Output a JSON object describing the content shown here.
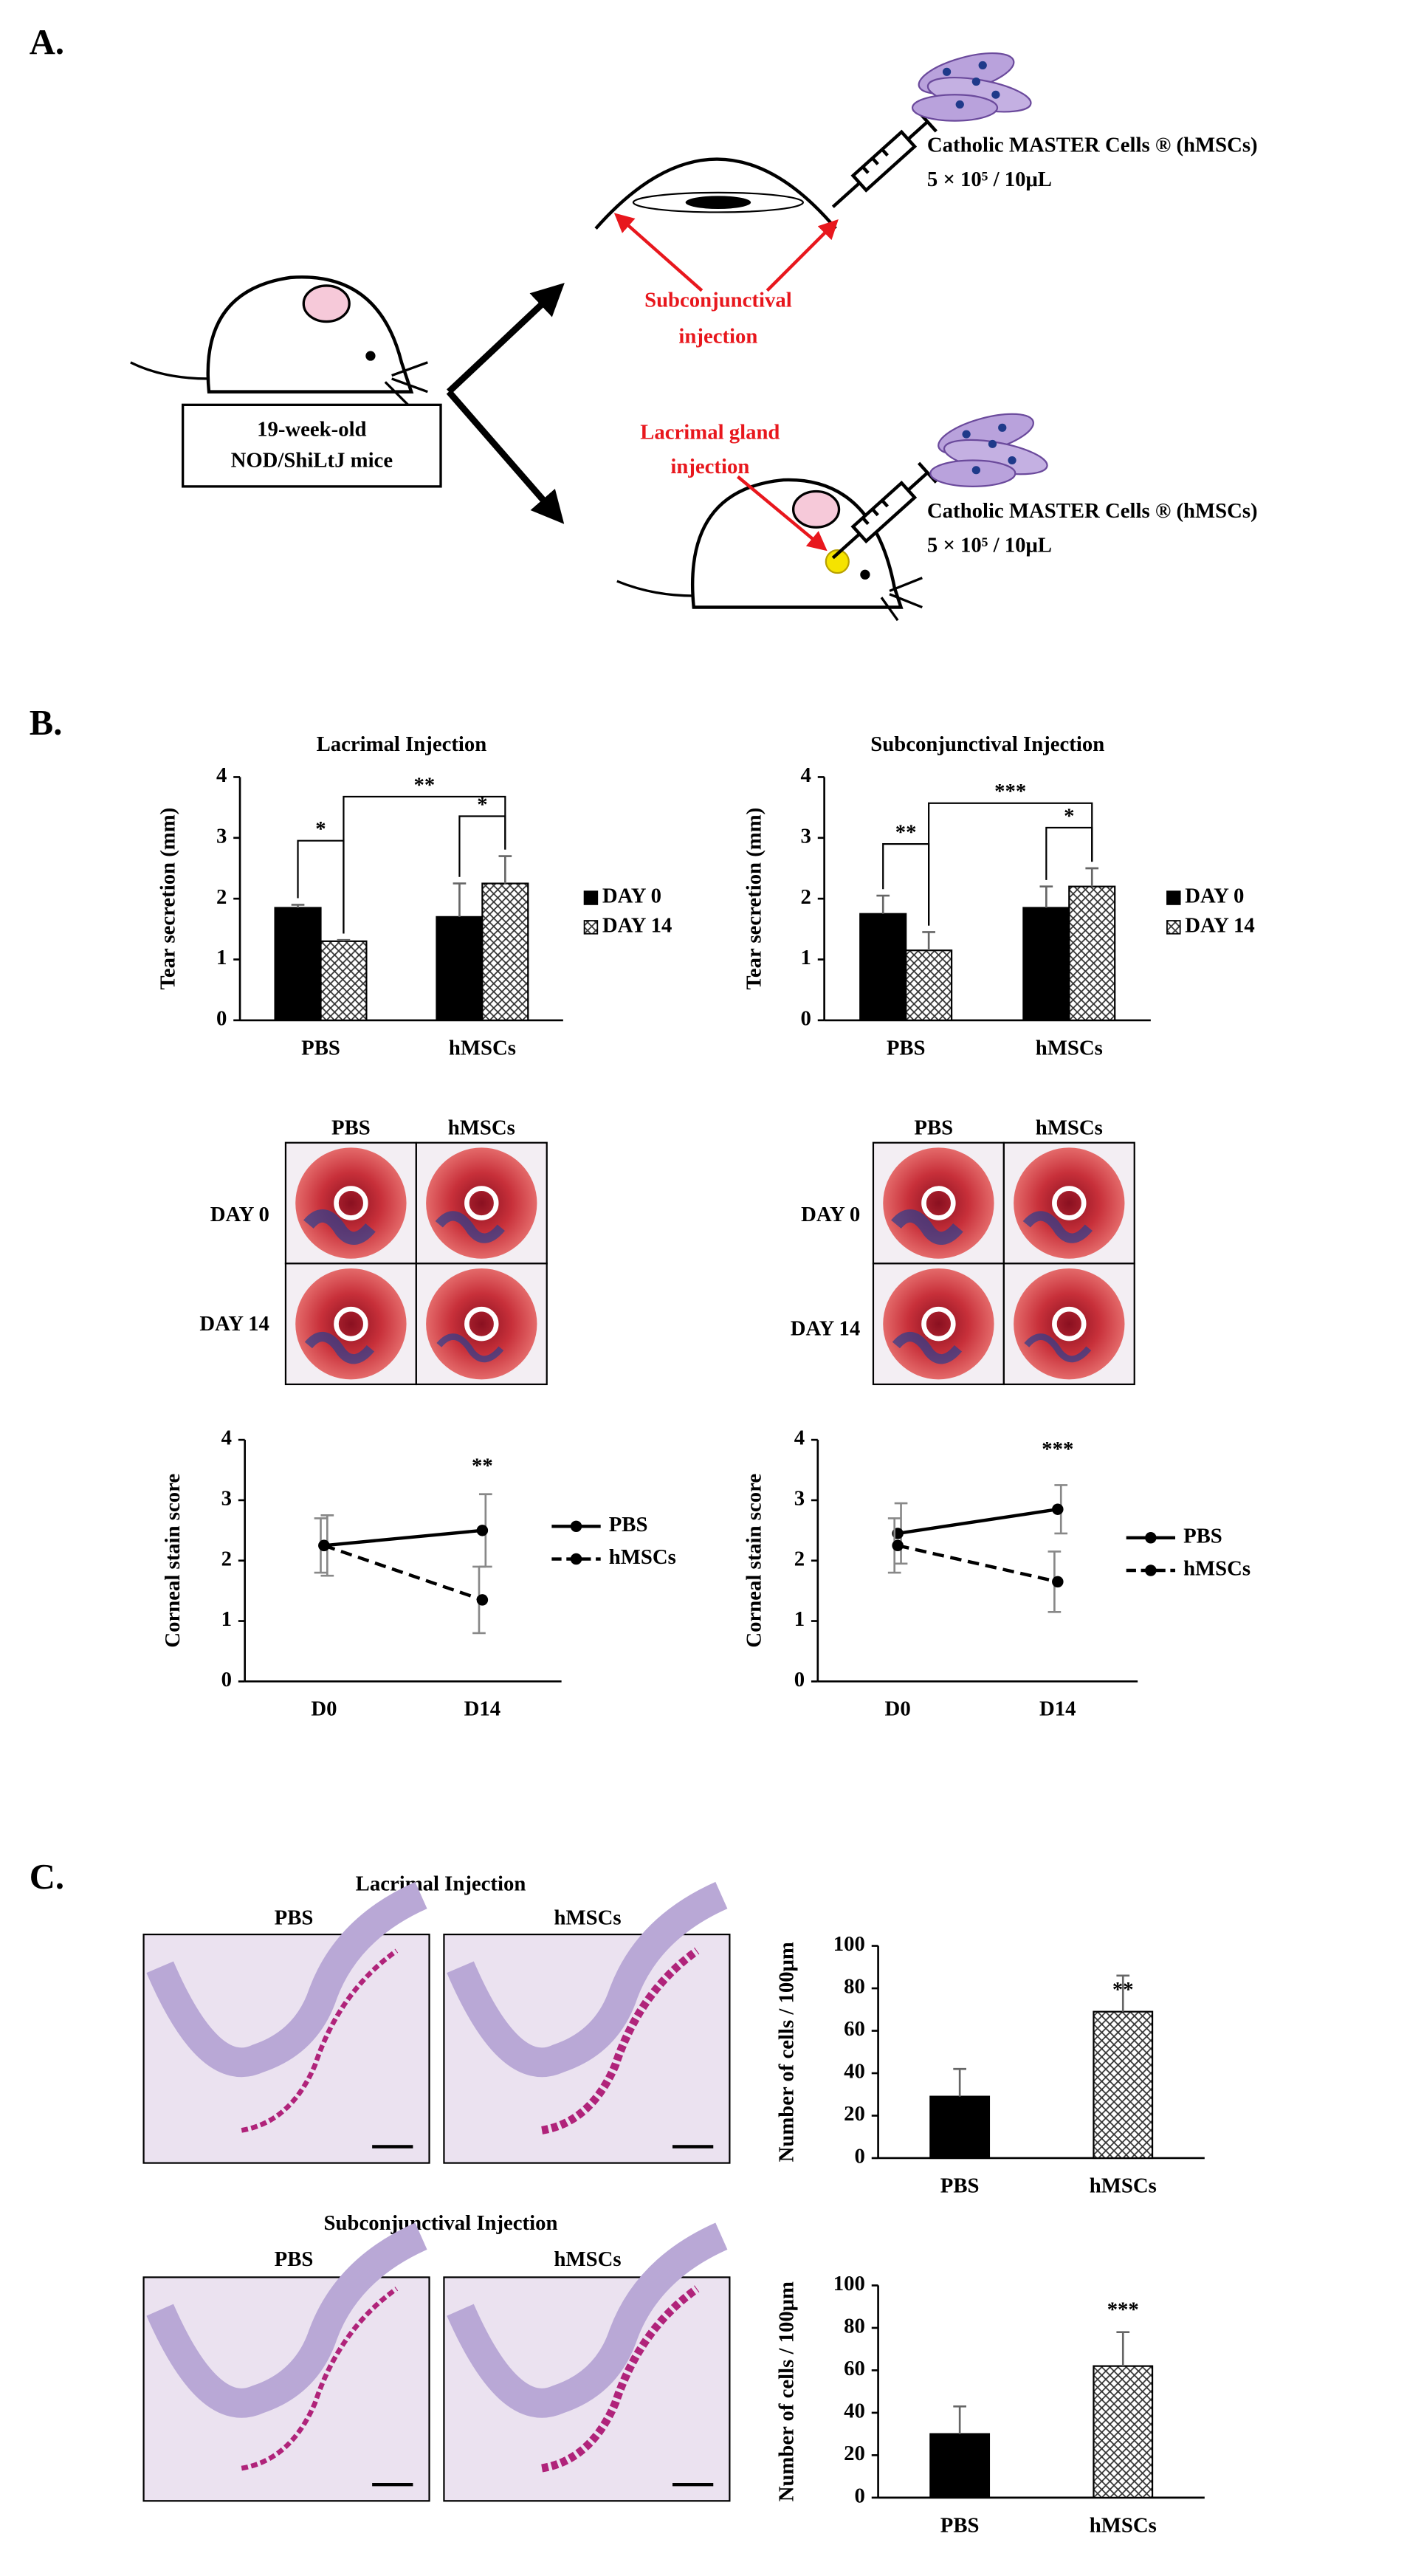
{
  "figure": {
    "panel_a": {
      "label": "A.",
      "mouse_label": [
        "19-week-old",
        "NOD/ShiLtJ mice"
      ],
      "cells_upper": [
        "Catholic  MASTER Cells ® (hMSCs)",
        "5 × 10⁵ / 10μL"
      ],
      "subconjunctival": [
        "Subconjunctival",
        "injection"
      ],
      "lacrimal": [
        "Lacrimal gland",
        "injection"
      ],
      "cells_lower": [
        "Catholic  MASTER Cells ® (hMSCs)",
        "5 × 10⁵ / 10μL"
      ]
    },
    "panel_b": {
      "label": "B.",
      "stain_left": {
        "columns": [
          "PBS",
          "hMSCs"
        ],
        "rows": [
          "DAY 0",
          "DAY 14"
        ]
      },
      "stain_right": {
        "columns": [
          "PBS",
          "hMSCs"
        ],
        "rows": [
          "DAY 0",
          "DAY 14"
        ]
      }
    },
    "panel_c": {
      "label": "C.",
      "lacrimal": {
        "title": "Lacrimal  Injection",
        "columns": [
          "PBS",
          "hMSCs"
        ]
      },
      "subconjunctival": {
        "title": "Subconjunctival  Injection",
        "columns": [
          "PBS",
          "hMSCs"
        ]
      }
    }
  },
  "chart_data": [
    {
      "type": "bar",
      "title": "Lacrimal  Injection",
      "y_label": "Tear secretion (mm)",
      "categories": [
        "PBS",
        "hMSCs"
      ],
      "series": [
        {
          "name": "DAY 0",
          "color": "#000000",
          "values": [
            1.85,
            1.7
          ],
          "errors": [
            0.05,
            0.55
          ]
        },
        {
          "name": "DAY 14",
          "color": "#ffffff",
          "hatched": true,
          "values": [
            1.3,
            2.25
          ],
          "errors": [
            0.02,
            0.45
          ]
        }
      ],
      "ylim": [
        0,
        4
      ],
      "yticks": [
        0,
        1,
        2,
        3,
        4
      ],
      "annotations": [
        "*",
        "**",
        "*"
      ]
    },
    {
      "type": "bar",
      "title": "Subconjunctival  Injection",
      "y_label": "Tear secretion (mm)",
      "categories": [
        "PBS",
        "hMSCs"
      ],
      "series": [
        {
          "name": "DAY 0",
          "color": "#000000",
          "values": [
            1.75,
            1.85
          ],
          "errors": [
            0.3,
            0.35
          ]
        },
        {
          "name": "DAY 14",
          "color": "#ffffff",
          "hatched": true,
          "values": [
            1.15,
            2.2
          ],
          "errors": [
            0.3,
            0.3
          ]
        }
      ],
      "ylim": [
        0,
        4
      ],
      "yticks": [
        0,
        1,
        2,
        3,
        4
      ],
      "annotations": [
        "**",
        "***",
        "*"
      ]
    },
    {
      "type": "line",
      "y_label": "Corneal stain score",
      "categories": [
        "D0",
        "D14"
      ],
      "series": [
        {
          "name": "PBS",
          "color": "#000000",
          "values": [
            2.25,
            2.5
          ],
          "errors": [
            0.5,
            0.6
          ]
        },
        {
          "name": "hMSCs",
          "color": "#000000",
          "dashed": true,
          "values": [
            2.25,
            1.35
          ],
          "errors": [
            0.45,
            0.55
          ]
        }
      ],
      "ylim": [
        0,
        4
      ],
      "yticks": [
        0,
        1,
        2,
        3,
        4
      ],
      "annotations": [
        "**"
      ]
    },
    {
      "type": "line",
      "y_label": "Corneal stain score",
      "categories": [
        "D0",
        "D14"
      ],
      "series": [
        {
          "name": "PBS",
          "color": "#000000",
          "values": [
            2.45,
            2.85
          ],
          "errors": [
            0.5,
            0.4
          ]
        },
        {
          "name": "hMSCs",
          "color": "#000000",
          "dashed": true,
          "values": [
            2.25,
            1.65
          ],
          "errors": [
            0.45,
            0.5
          ]
        }
      ],
      "ylim": [
        0,
        4
      ],
      "yticks": [
        0,
        1,
        2,
        3,
        4
      ],
      "annotations": [
        "***"
      ]
    },
    {
      "type": "bar",
      "y_label": "Number of cells / 100μm",
      "categories": [
        "PBS",
        "hMSCs"
      ],
      "values": [
        29,
        69
      ],
      "errors": [
        13,
        17
      ],
      "colors": [
        "#000000",
        "#ffffff"
      ],
      "hatched": [
        false,
        true
      ],
      "ylim": [
        0,
        100
      ],
      "yticks": [
        0,
        20,
        40,
        60,
        80,
        100
      ],
      "annotations": [
        "**"
      ]
    },
    {
      "type": "bar",
      "y_label": "Number of cells / 100μm",
      "categories": [
        "PBS",
        "hMSCs"
      ],
      "values": [
        30,
        62
      ],
      "errors": [
        13,
        16
      ],
      "colors": [
        "#000000",
        "#ffffff"
      ],
      "hatched": [
        false,
        true
      ],
      "ylim": [
        0,
        100
      ],
      "yticks": [
        0,
        20,
        40,
        60,
        80,
        100
      ],
      "annotations": [
        "***"
      ]
    }
  ]
}
